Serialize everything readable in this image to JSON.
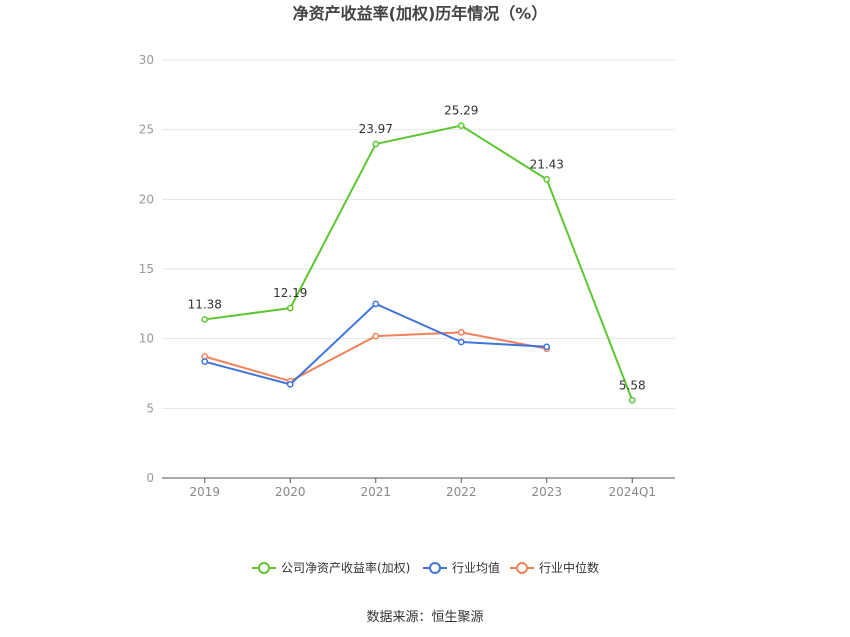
{
  "chart_data": {
    "type": "line",
    "title": "净资产收益率(加权)历年情况（%）",
    "categories": [
      "2019",
      "2020",
      "2021",
      "2022",
      "2023",
      "2024Q1"
    ],
    "ylim": [
      0,
      30
    ],
    "yticks": [
      0,
      5,
      10,
      15,
      20,
      25,
      30
    ],
    "grid": true,
    "legend_position": "bottom",
    "series": [
      {
        "name": "公司净资产收益率(加权)",
        "color": "#5dc631",
        "values": [
          11.38,
          12.19,
          23.97,
          25.29,
          21.43,
          5.58
        ],
        "show_labels": true
      },
      {
        "name": "行业均值",
        "color": "#3f74db",
        "values": [
          8.35,
          6.72,
          12.5,
          9.76,
          9.42,
          null
        ],
        "show_labels": false
      },
      {
        "name": "行业中位数",
        "color": "#f08159",
        "values": [
          8.72,
          6.95,
          10.18,
          10.45,
          9.28,
          null
        ],
        "show_labels": false
      }
    ],
    "source": "数据来源：恒生聚源"
  }
}
